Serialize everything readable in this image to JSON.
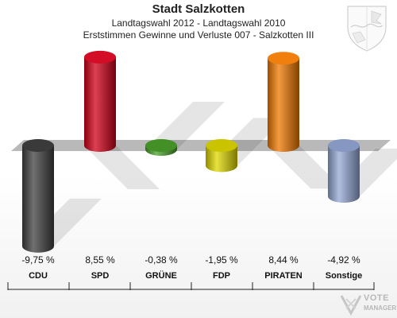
{
  "header": {
    "title": "Stadt Salzkotten",
    "subtitle1": "Landtagswahl 2012 - Landtagswahl 2010",
    "subtitle2": "Erststimmen Gewinne und Verluste 007 - Salzkotten III"
  },
  "chart_data": {
    "type": "bar",
    "categories": [
      "CDU",
      "SPD",
      "GRÜNE",
      "FDP",
      "PIRATEN",
      "Sonstige"
    ],
    "values": [
      -9.75,
      8.55,
      -0.38,
      -1.95,
      8.44,
      -4.92
    ],
    "value_labels": [
      "-9,75 %",
      "8,55 %",
      "-0,38 %",
      "-1,95 %",
      "8,44 %",
      "-4,92 %"
    ],
    "colors": [
      "#404040",
      "#d1001a",
      "#4aa02a",
      "#e0d900",
      "#f07800",
      "#95a8d6"
    ],
    "ylim": [
      -10,
      10
    ],
    "grid": false,
    "legend": "none"
  },
  "watermark": {
    "line1": "VOTE",
    "line2": "MANAGER"
  }
}
